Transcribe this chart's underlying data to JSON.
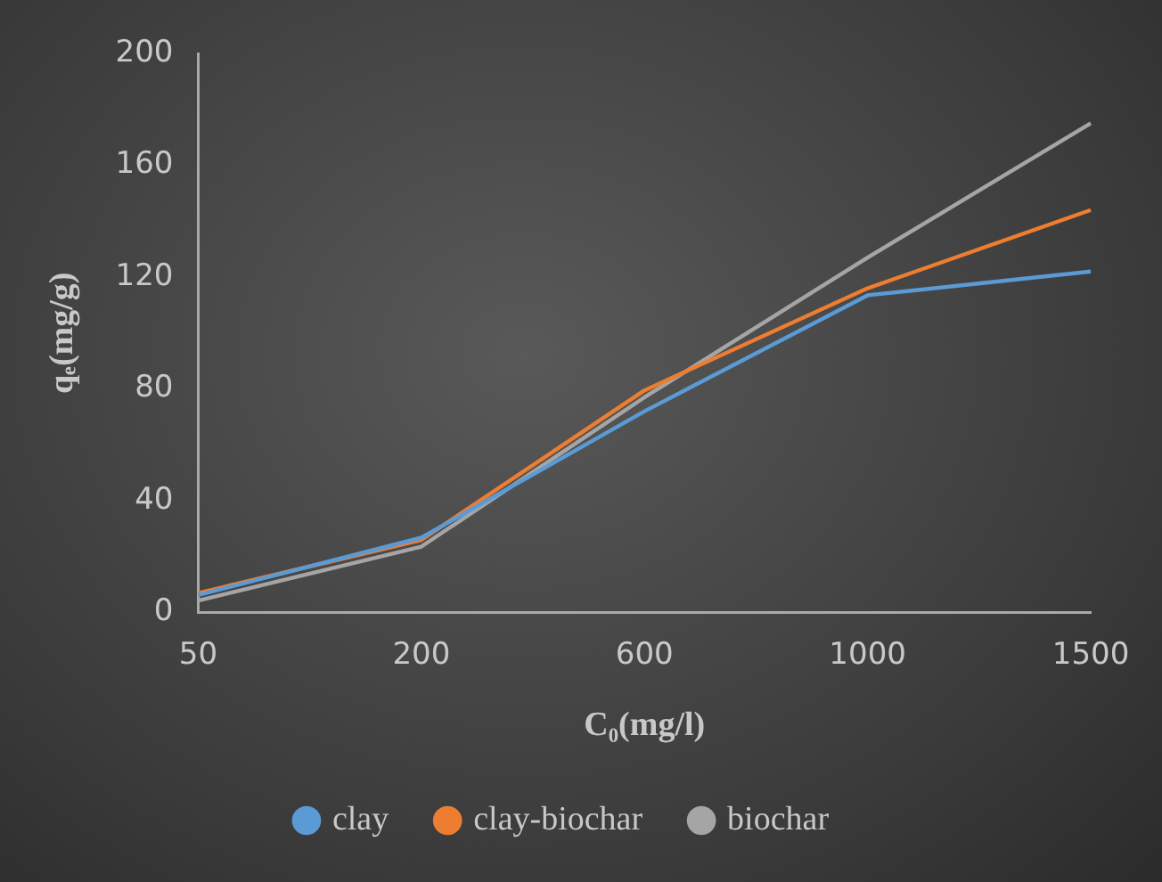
{
  "chart_data": {
    "type": "line",
    "xlabel": "C₀(mg/l)",
    "ylabel": "qₑ(mg/g)",
    "categories": [
      "50",
      "200",
      "600",
      "1000",
      "1500"
    ],
    "series": [
      {
        "name": "clay",
        "color": "#5b9bd5",
        "values": [
          6.3,
          26.8,
          72,
          113.5,
          122
        ]
      },
      {
        "name": "clay-biochar",
        "color": "#ed7d31",
        "values": [
          7,
          26,
          79.5,
          116,
          144
        ]
      },
      {
        "name": "biochar",
        "color": "#a5a5a5",
        "values": [
          4.3,
          23.6,
          77,
          127,
          175
        ]
      }
    ],
    "ylim": [
      0,
      200
    ],
    "yticks": [
      0,
      40,
      80,
      120,
      160,
      200
    ],
    "grid": false,
    "legend": "bottom",
    "marker": "none",
    "line_style": "solid"
  }
}
